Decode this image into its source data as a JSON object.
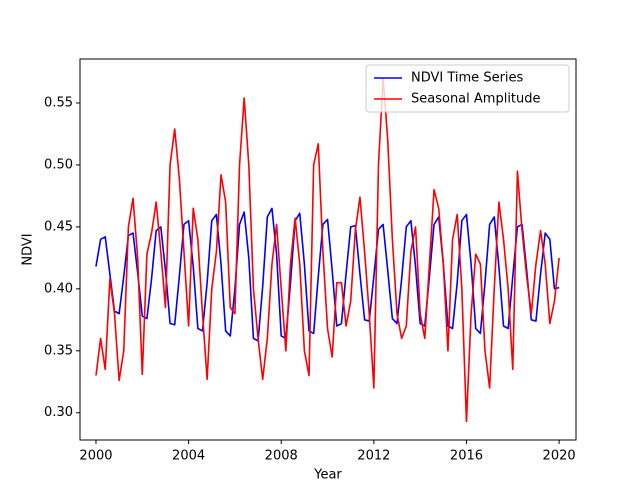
{
  "chart_data": {
    "type": "line",
    "xlabel": "Year",
    "ylabel": "NDVI",
    "x": [
      2000.0,
      2000.2,
      2000.4,
      2000.6,
      2000.8,
      2001.0,
      2001.2,
      2001.4,
      2001.6,
      2001.8,
      2002.0,
      2002.2,
      2002.4,
      2002.6,
      2002.8,
      2003.0,
      2003.2,
      2003.4,
      2003.6,
      2003.8,
      2004.0,
      2004.2,
      2004.4,
      2004.6,
      2004.8,
      2005.0,
      2005.2,
      2005.4,
      2005.6,
      2005.8,
      2006.0,
      2006.2,
      2006.4,
      2006.6,
      2006.8,
      2007.0,
      2007.2,
      2007.4,
      2007.6,
      2007.8,
      2008.0,
      2008.2,
      2008.4,
      2008.6,
      2008.8,
      2009.0,
      2009.2,
      2009.4,
      2009.6,
      2009.8,
      2010.0,
      2010.2,
      2010.4,
      2010.6,
      2010.8,
      2011.0,
      2011.2,
      2011.4,
      2011.6,
      2011.8,
      2012.0,
      2012.2,
      2012.4,
      2012.6,
      2012.8,
      2013.0,
      2013.2,
      2013.4,
      2013.6,
      2013.8,
      2014.0,
      2014.2,
      2014.4,
      2014.6,
      2014.8,
      2015.0,
      2015.2,
      2015.4,
      2015.6,
      2015.8,
      2016.0,
      2016.2,
      2016.4,
      2016.6,
      2016.8,
      2017.0,
      2017.2,
      2017.4,
      2017.6,
      2017.8,
      2018.0,
      2018.2,
      2018.4,
      2018.6,
      2018.8,
      2019.0,
      2019.2,
      2019.4,
      2019.6,
      2019.8,
      2020.0
    ],
    "series": [
      {
        "name": "NDVI Time Series",
        "color": "#0000ff",
        "values": [
          0.418,
          0.44,
          0.442,
          0.412,
          0.382,
          0.38,
          0.41,
          0.443,
          0.445,
          0.413,
          0.378,
          0.376,
          0.408,
          0.447,
          0.45,
          0.415,
          0.372,
          0.371,
          0.41,
          0.452,
          0.455,
          0.418,
          0.368,
          0.366,
          0.405,
          0.455,
          0.46,
          0.42,
          0.366,
          0.362,
          0.4,
          0.452,
          0.462,
          0.425,
          0.36,
          0.358,
          0.402,
          0.458,
          0.465,
          0.428,
          0.362,
          0.36,
          0.405,
          0.455,
          0.461,
          0.42,
          0.366,
          0.364,
          0.41,
          0.452,
          0.456,
          0.415,
          0.37,
          0.372,
          0.412,
          0.45,
          0.451,
          0.412,
          0.375,
          0.374,
          0.41,
          0.448,
          0.452,
          0.415,
          0.376,
          0.372,
          0.408,
          0.45,
          0.455,
          0.418,
          0.372,
          0.37,
          0.41,
          0.452,
          0.458,
          0.42,
          0.37,
          0.368,
          0.405,
          0.455,
          0.46,
          0.42,
          0.368,
          0.364,
          0.405,
          0.452,
          0.458,
          0.418,
          0.37,
          0.368,
          0.41,
          0.45,
          0.452,
          0.415,
          0.375,
          0.374,
          0.412,
          0.445,
          0.44,
          0.4,
          0.401
        ]
      },
      {
        "name": "Seasonal Amplitude",
        "color": "#ff0000",
        "values": [
          0.33,
          0.36,
          0.335,
          0.408,
          0.38,
          0.326,
          0.35,
          0.45,
          0.473,
          0.425,
          0.331,
          0.428,
          0.445,
          0.47,
          0.43,
          0.385,
          0.5,
          0.529,
          0.489,
          0.43,
          0.37,
          0.465,
          0.44,
          0.38,
          0.327,
          0.4,
          0.43,
          0.492,
          0.47,
          0.385,
          0.38,
          0.5,
          0.554,
          0.5,
          0.4,
          0.36,
          0.327,
          0.36,
          0.42,
          0.452,
          0.4,
          0.35,
          0.42,
          0.457,
          0.42,
          0.35,
          0.33,
          0.5,
          0.517,
          0.43,
          0.368,
          0.345,
          0.405,
          0.405,
          0.37,
          0.39,
          0.447,
          0.474,
          0.43,
          0.38,
          0.32,
          0.5,
          0.57,
          0.52,
          0.44,
          0.38,
          0.36,
          0.37,
          0.43,
          0.45,
          0.38,
          0.36,
          0.42,
          0.48,
          0.465,
          0.42,
          0.35,
          0.44,
          0.46,
          0.4,
          0.293,
          0.38,
          0.428,
          0.42,
          0.35,
          0.32,
          0.4,
          0.47,
          0.44,
          0.4,
          0.335,
          0.495,
          0.447,
          0.41,
          0.38,
          0.42,
          0.447,
          0.42,
          0.372,
          0.39,
          0.425
        ]
      }
    ],
    "xlim": [
      1999.31,
      2020.73
    ],
    "ylim": [
      0.278,
      0.5855
    ],
    "xticks": [
      2000,
      2004,
      2008,
      2012,
      2016,
      2020
    ],
    "yticks": [
      {
        "value": 0.3,
        "label": "0.30"
      },
      0.35,
      {
        "value": 0.4,
        "label": "0.40"
      },
      0.45,
      {
        "value": 0.5,
        "label": "0.50"
      },
      0.55
    ],
    "legend": "upper right"
  }
}
